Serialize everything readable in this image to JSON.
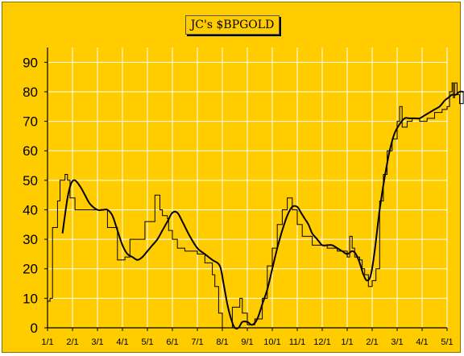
{
  "chart_data": {
    "type": "line",
    "title": "JC's $BPGOLD",
    "ylim": [
      0,
      95
    ],
    "yticks": [
      0,
      10,
      20,
      30,
      40,
      50,
      60,
      70,
      80,
      90
    ],
    "ytick_labels": [
      "0",
      "10",
      "20",
      "30",
      "40",
      "50",
      "60",
      "70",
      "80",
      "90"
    ],
    "xtick_labels": [
      "1/1",
      "2/1",
      "3/1",
      "4/1",
      "5/1",
      "6/1",
      "7/1",
      "8/1",
      "9/1",
      "10/1",
      "11/1",
      "12/1",
      "1/1",
      "2/1",
      "3/1",
      "4/1",
      "5/1"
    ],
    "grid": true,
    "colors": {
      "background": "#ffcc00",
      "grid": "#ffffff",
      "series": "#000000"
    },
    "series": [
      {
        "style": "thin-step",
        "x": [
          0.0,
          0.1,
          0.2,
          0.4,
          0.5,
          0.7,
          0.8,
          0.9,
          1.1,
          1.2,
          1.5,
          1.9,
          2.4,
          2.8,
          3.0,
          3.1,
          3.3,
          3.5,
          3.9,
          4.3,
          4.5,
          4.6,
          4.8,
          4.85,
          5.0,
          5.2,
          5.5,
          5.8,
          6.0,
          6.3,
          6.6,
          6.7,
          6.85,
          7.0,
          7.2,
          7.4,
          7.7,
          7.8,
          8.0,
          8.3,
          8.6,
          8.8,
          9.0,
          9.2,
          9.4,
          9.6,
          9.8,
          10.0,
          10.2,
          10.6,
          11.0,
          11.2,
          11.6,
          12.0,
          12.1,
          12.2,
          12.3,
          12.5,
          12.6,
          12.7,
          12.85,
          13.0,
          13.15,
          13.3,
          13.45,
          13.6,
          13.8,
          14.0,
          14.1,
          14.2,
          14.4,
          14.6,
          14.9,
          15.2,
          15.5,
          15.8,
          16.0,
          16.1,
          16.2,
          16.25,
          16.3,
          16.4,
          16.5,
          16.6,
          16.65,
          16.7
        ],
        "values": [
          9,
          10,
          34,
          43,
          50,
          52,
          50,
          44,
          40,
          40,
          40,
          40,
          34,
          23,
          23,
          24,
          30,
          30,
          36,
          45,
          40,
          38,
          37,
          33,
          30,
          27,
          26,
          26,
          25,
          22,
          18,
          14,
          5,
          0,
          0,
          7,
          10,
          5,
          1,
          3,
          10,
          21,
          27,
          35,
          40,
          44,
          40,
          35,
          31,
          28,
          28,
          27,
          26,
          24,
          31,
          27,
          24,
          23,
          20,
          18,
          14,
          16,
          20,
          43,
          52,
          60,
          64,
          70,
          75,
          68,
          70,
          71,
          70,
          71,
          73,
          74,
          75,
          80,
          83,
          78,
          83,
          79,
          76,
          76,
          80,
          80
        ]
      },
      {
        "style": "thick-smooth",
        "x": [
          0.6,
          0.8,
          0.95,
          1.1,
          1.3,
          1.5,
          1.7,
          2.0,
          2.2,
          2.4,
          2.6,
          2.8,
          3.0,
          3.2,
          3.4,
          3.6,
          3.8,
          4.0,
          4.2,
          4.4,
          4.6,
          4.8,
          5.0,
          5.2,
          5.4,
          5.7,
          6.0,
          6.3,
          6.6,
          6.9,
          7.05,
          7.2,
          7.35,
          7.5,
          7.65,
          7.8,
          8.0,
          8.2,
          8.4,
          8.6,
          8.8,
          9.0,
          9.2,
          9.4,
          9.6,
          9.8,
          10.0,
          10.15,
          10.3,
          10.45,
          10.6,
          10.8,
          11.0,
          11.2,
          11.4,
          11.6,
          11.8,
          12.0,
          12.2,
          12.35,
          12.5,
          12.65,
          12.8,
          12.95,
          13.1,
          13.3,
          13.5,
          13.7,
          13.9,
          14.1,
          14.3,
          14.5,
          14.7,
          14.9,
          15.1,
          15.3,
          15.5,
          15.7,
          15.9,
          16.05,
          16.2,
          16.35,
          16.5,
          16.65
        ],
        "values": [
          32,
          44,
          49,
          50,
          48,
          45,
          42,
          40,
          40,
          40,
          38,
          33,
          28,
          25,
          24,
          23,
          24,
          26,
          28,
          30,
          33,
          36,
          39,
          39,
          36,
          31,
          27,
          25,
          23,
          21,
          15,
          8,
          3,
          0,
          0,
          2,
          2,
          1,
          3,
          8,
          13,
          20,
          27,
          33,
          38,
          41,
          41,
          39,
          37,
          35,
          32,
          30,
          28,
          28,
          28,
          27,
          26,
          25,
          26,
          25,
          22,
          18,
          16,
          18,
          26,
          40,
          51,
          60,
          66,
          69,
          71,
          71,
          71,
          71,
          72,
          73,
          74,
          75,
          77,
          78,
          79,
          79,
          80,
          80
        ]
      }
    ]
  }
}
